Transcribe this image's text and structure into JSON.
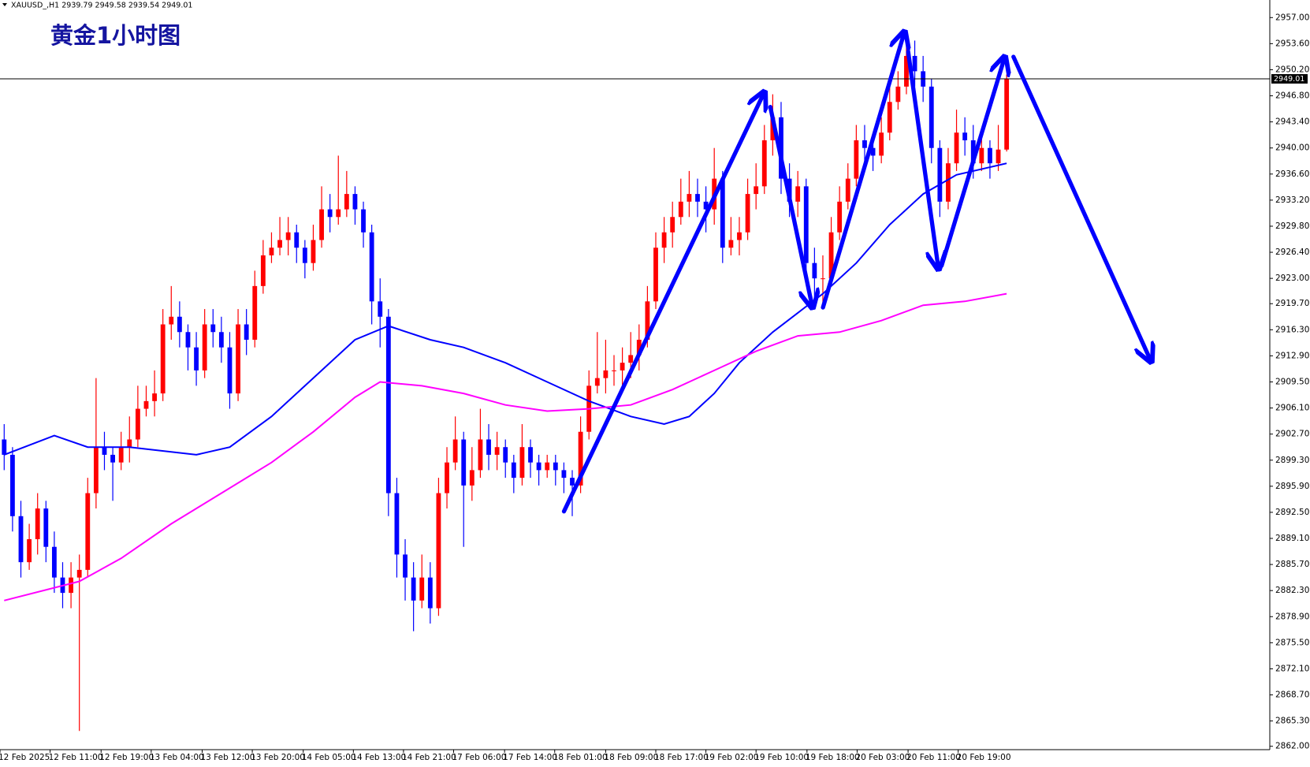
{
  "chart_data": {
    "type": "candlestick",
    "header": "XAUUSD_,H1  2939.79 2949.58 2939.54 2949.01",
    "title": "黄金1小时图",
    "up_color": "#ff0000",
    "down_color": "#0000ff",
    "candles": [
      [
        2902,
        2904,
        2898,
        2900
      ],
      [
        2900,
        2901,
        2890,
        2892
      ],
      [
        2892,
        2894,
        2884,
        2886
      ],
      [
        2886,
        2891,
        2885,
        2889
      ],
      [
        2889,
        2895,
        2887,
        2893
      ],
      [
        2893,
        2894,
        2886,
        2888
      ],
      [
        2888,
        2890,
        2882,
        2884
      ],
      [
        2884,
        2886,
        2880,
        2882
      ],
      [
        2882,
        2886,
        2880,
        2884
      ],
      [
        2884,
        2887,
        2864,
        2885
      ],
      [
        2885,
        2897,
        2884,
        2895
      ],
      [
        2895,
        2910,
        2893,
        2901
      ],
      [
        2901,
        2903,
        2898,
        2900
      ],
      [
        2900,
        2901,
        2894,
        2899
      ],
      [
        2899,
        2903,
        2898,
        2901
      ],
      [
        2901,
        2905,
        2899,
        2902
      ],
      [
        2902,
        2909,
        2901,
        2906
      ],
      [
        2906,
        2909,
        2905,
        2907
      ],
      [
        2907,
        2911,
        2905,
        2908
      ],
      [
        2908,
        2919,
        2907,
        2917
      ],
      [
        2917,
        2922,
        2915,
        2918
      ],
      [
        2918,
        2920,
        2914,
        2916
      ],
      [
        2916,
        2917,
        2911,
        2914
      ],
      [
        2914,
        2916,
        2909,
        2911
      ],
      [
        2911,
        2919,
        2910,
        2917
      ],
      [
        2917,
        2919,
        2914,
        2916
      ],
      [
        2916,
        2918,
        2912,
        2914
      ],
      [
        2914,
        2916,
        2906,
        2908
      ],
      [
        2908,
        2919,
        2907,
        2917
      ],
      [
        2917,
        2919,
        2913,
        2915
      ],
      [
        2915,
        2924,
        2914,
        2922
      ],
      [
        2922,
        2928,
        2921,
        2926
      ],
      [
        2926,
        2929,
        2925,
        2927
      ],
      [
        2927,
        2931,
        2926,
        2928
      ],
      [
        2928,
        2931,
        2926,
        2929
      ],
      [
        2929,
        2930,
        2925,
        2927
      ],
      [
        2927,
        2928,
        2923,
        2925
      ],
      [
        2925,
        2930,
        2924,
        2928
      ],
      [
        2928,
        2935,
        2927,
        2932
      ],
      [
        2932,
        2934,
        2929,
        2931
      ],
      [
        2931,
        2939,
        2930,
        2932
      ],
      [
        2932,
        2937,
        2931,
        2934
      ],
      [
        2934,
        2935,
        2930,
        2932
      ],
      [
        2932,
        2933,
        2927,
        2929
      ],
      [
        2929,
        2930,
        2917,
        2920
      ],
      [
        2920,
        2923,
        2914,
        2918
      ],
      [
        2918,
        2919,
        2892,
        2895
      ],
      [
        2895,
        2897,
        2884,
        2887
      ],
      [
        2887,
        2889,
        2881,
        2884
      ],
      [
        2884,
        2886,
        2877,
        2881
      ],
      [
        2881,
        2887,
        2880,
        2884
      ],
      [
        2884,
        2886,
        2878,
        2880
      ],
      [
        2880,
        2897,
        2879,
        2895
      ],
      [
        2895,
        2901,
        2893,
        2899
      ],
      [
        2899,
        2905,
        2898,
        2902
      ],
      [
        2902,
        2903,
        2888,
        2896
      ],
      [
        2896,
        2901,
        2894,
        2898
      ],
      [
        2898,
        2906,
        2897,
        2902
      ],
      [
        2902,
        2904,
        2898,
        2900
      ],
      [
        2900,
        2903,
        2898,
        2901
      ],
      [
        2901,
        2902,
        2897,
        2899
      ],
      [
        2899,
        2900,
        2895,
        2897
      ],
      [
        2897,
        2904,
        2896,
        2901
      ],
      [
        2901,
        2902,
        2897,
        2899
      ],
      [
        2899,
        2900,
        2896,
        2898
      ],
      [
        2898,
        2900,
        2897,
        2899
      ],
      [
        2899,
        2900,
        2896,
        2898
      ],
      [
        2898,
        2899,
        2895,
        2897
      ],
      [
        2897,
        2898,
        2892,
        2896
      ],
      [
        2896,
        2905,
        2895,
        2903
      ],
      [
        2903,
        2911,
        2902,
        2909
      ],
      [
        2909,
        2916,
        2908,
        2910
      ],
      [
        2910,
        2915,
        2908,
        2911
      ],
      [
        2911,
        2913,
        2909,
        2911
      ],
      [
        2911,
        2914,
        2909,
        2912
      ],
      [
        2912,
        2916,
        2910,
        2913
      ],
      [
        2913,
        2917,
        2911,
        2915
      ],
      [
        2915,
        2922,
        2914,
        2920
      ],
      [
        2920,
        2929,
        2919,
        2927
      ],
      [
        2927,
        2931,
        2925,
        2929
      ],
      [
        2929,
        2933,
        2927,
        2931
      ],
      [
        2931,
        2936,
        2930,
        2933
      ],
      [
        2933,
        2937,
        2931,
        2934
      ],
      [
        2934,
        2936,
        2931,
        2933
      ],
      [
        2933,
        2935,
        2929,
        2932
      ],
      [
        2932,
        2940,
        2930,
        2936
      ],
      [
        2936,
        2937,
        2925,
        2927
      ],
      [
        2927,
        2931,
        2926,
        2928
      ],
      [
        2928,
        2931,
        2926,
        2929
      ],
      [
        2929,
        2936,
        2928,
        2934
      ],
      [
        2934,
        2938,
        2932,
        2935
      ],
      [
        2935,
        2943,
        2934,
        2941
      ],
      [
        2941,
        2947,
        2939,
        2944
      ],
      [
        2944,
        2946,
        2934,
        2936
      ],
      [
        2936,
        2938,
        2931,
        2933
      ],
      [
        2933,
        2937,
        2931,
        2935
      ],
      [
        2935,
        2936,
        2923,
        2925
      ],
      [
        2925,
        2927,
        2920,
        2923
      ],
      [
        2923,
        2926,
        2919,
        2923
      ],
      [
        2923,
        2931,
        2922,
        2929
      ],
      [
        2929,
        2935,
        2928,
        2933
      ],
      [
        2933,
        2938,
        2932,
        2936
      ],
      [
        2936,
        2943,
        2935,
        2941
      ],
      [
        2941,
        2943,
        2938,
        2940
      ],
      [
        2940,
        2942,
        2937,
        2939
      ],
      [
        2939,
        2944,
        2938,
        2942
      ],
      [
        2942,
        2948,
        2941,
        2946
      ],
      [
        2946,
        2950,
        2945,
        2948
      ],
      [
        2948,
        2955,
        2947,
        2952
      ],
      [
        2952,
        2954,
        2948,
        2950
      ],
      [
        2950,
        2952,
        2946,
        2948
      ],
      [
        2948,
        2949,
        2938,
        2940
      ],
      [
        2940,
        2941,
        2931,
        2933
      ],
      [
        2933,
        2940,
        2932,
        2938
      ],
      [
        2938,
        2945,
        2937,
        2942
      ],
      [
        2942,
        2944,
        2939,
        2941
      ],
      [
        2941,
        2943,
        2936,
        2938
      ],
      [
        2938,
        2942,
        2937,
        2940
      ],
      [
        2940,
        2941,
        2936,
        2938
      ],
      [
        2938,
        2943,
        2937,
        2939.79
      ],
      [
        2939.79,
        2949.58,
        2939.54,
        2949.01
      ]
    ],
    "series": [
      {
        "color": "#0000ff",
        "x": [
          0,
          6,
          10,
          15,
          23,
          27,
          32,
          37,
          42,
          46,
          51,
          55,
          60,
          65,
          70,
          75,
          79,
          82,
          85,
          88,
          92,
          95,
          98,
          102,
          106,
          110,
          114,
          120
        ],
        "values": [
          2900,
          2902.5,
          2901,
          2901,
          2900,
          2901,
          2905,
          2910,
          2915,
          2916.8,
          2915,
          2914,
          2912,
          2909.5,
          2907,
          2905,
          2904,
          2905,
          2908,
          2912,
          2916,
          2918.5,
          2921,
          2925,
          2930,
          2934,
          2936.5,
          2938
        ]
      },
      {
        "color": "#ff00ff",
        "x": [
          0,
          9,
          14,
          20,
          26,
          32,
          37,
          42,
          45,
          50,
          55,
          60,
          65,
          70,
          75,
          80,
          85,
          90,
          95,
          100,
          105,
          110,
          115,
          120
        ],
        "values": [
          2881,
          2883.5,
          2886.5,
          2891,
          2895,
          2899,
          2903,
          2907.5,
          2909.5,
          2909,
          2908,
          2906.5,
          2905.7,
          2906,
          2906.5,
          2908.5,
          2911,
          2913.5,
          2915.5,
          2916,
          2917.5,
          2919.5,
          2920,
          2921
        ]
      }
    ],
    "current_price": 2949.01,
    "xlim": [
      -0.5,
      151.5
    ],
    "ylim": [
      2861.56,
      2959.29
    ],
    "xticks": [
      {
        "value": -0.5,
        "label": "12 Feb 2025"
      },
      {
        "value": 5.5,
        "label": "12 Feb 11:00"
      },
      {
        "value": 11.6,
        "label": "12 Feb 19:00"
      },
      {
        "value": 17.6,
        "label": "13 Feb 04:00"
      },
      {
        "value": 23.7,
        "label": "13 Feb 12:00"
      },
      {
        "value": 29.7,
        "label": "13 Feb 20:00"
      },
      {
        "value": 35.8,
        "label": "14 Feb 05:00"
      },
      {
        "value": 41.8,
        "label": "14 Feb 13:00"
      },
      {
        "value": 47.8,
        "label": "14 Feb 21:00"
      },
      {
        "value": 53.8,
        "label": "17 Feb 06:00"
      },
      {
        "value": 59.9,
        "label": "17 Feb 14:00"
      },
      {
        "value": 65.9,
        "label": "18 Feb 01:00"
      },
      {
        "value": 72,
        "label": "18 Feb 09:00"
      },
      {
        "value": 78,
        "label": "18 Feb 17:00"
      },
      {
        "value": 84,
        "label": "19 Feb 02:00"
      },
      {
        "value": 90,
        "label": "19 Feb 10:00"
      },
      {
        "value": 96.1,
        "label": "19 Feb 18:00"
      },
      {
        "value": 102.1,
        "label": "20 Feb 03:00"
      },
      {
        "value": 108.2,
        "label": "20 Feb 11:00"
      },
      {
        "value": 114.2,
        "label": "20 Feb 19:00"
      }
    ],
    "yticks": [
      {
        "value": 2957,
        "label": "2957.00"
      },
      {
        "value": 2953.6,
        "label": "2953.60"
      },
      {
        "value": 2950.2,
        "label": "2950.20"
      },
      {
        "value": 2946.8,
        "label": "2946.80"
      },
      {
        "value": 2943.4,
        "label": "2943.40"
      },
      {
        "value": 2940,
        "label": "2940.00"
      },
      {
        "value": 2936.6,
        "label": "2936.60"
      },
      {
        "value": 2933.2,
        "label": "2933.20"
      },
      {
        "value": 2929.8,
        "label": "2929.80"
      },
      {
        "value": 2926.4,
        "label": "2926.40"
      },
      {
        "value": 2923,
        "label": "2923.00"
      },
      {
        "value": 2919.7,
        "label": "2919.70"
      },
      {
        "value": 2916.3,
        "label": "2916.30"
      },
      {
        "value": 2912.9,
        "label": "2912.90"
      },
      {
        "value": 2909.5,
        "label": "2909.50"
      },
      {
        "value": 2906.1,
        "label": "2906.10"
      },
      {
        "value": 2902.7,
        "label": "2902.70"
      },
      {
        "value": 2899.3,
        "label": "2899.30"
      },
      {
        "value": 2895.9,
        "label": "2895.90"
      },
      {
        "value": 2892.5,
        "label": "2892.50"
      },
      {
        "value": 2889.1,
        "label": "2889.10"
      },
      {
        "value": 2885.7,
        "label": "2885.70"
      },
      {
        "value": 2882.3,
        "label": "2882.30"
      },
      {
        "value": 2878.9,
        "label": "2878.90"
      },
      {
        "value": 2875.5,
        "label": "2875.50"
      },
      {
        "value": 2872.1,
        "label": "2872.10"
      },
      {
        "value": 2868.7,
        "label": "2868.70"
      },
      {
        "value": 2865.3,
        "label": "2865.30"
      },
      {
        "value": 2862,
        "label": "2862.00"
      }
    ],
    "grid": false
  }
}
